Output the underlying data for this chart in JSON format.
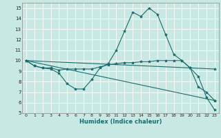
{
  "title": "",
  "xlabel": "Humidex (Indice chaleur)",
  "xlim": [
    -0.5,
    23.5
  ],
  "ylim": [
    5,
    15.5
  ],
  "yticks": [
    5,
    6,
    7,
    8,
    9,
    10,
    11,
    12,
    13,
    14,
    15
  ],
  "xticks": [
    0,
    1,
    2,
    3,
    4,
    5,
    6,
    7,
    8,
    9,
    10,
    11,
    12,
    13,
    14,
    15,
    16,
    17,
    18,
    19,
    20,
    21,
    22,
    23
  ],
  "bg_color": "#c8e8e4",
  "line_color": "#1a6b6b",
  "grid_color": "#ffffff",
  "lines": [
    {
      "x": [
        0,
        1,
        2,
        3,
        4,
        5,
        6,
        7,
        8,
        9,
        10,
        11,
        12,
        13,
        14,
        15,
        16,
        17,
        18,
        19,
        20,
        21,
        22,
        23
      ],
      "y": [
        10.0,
        9.5,
        9.3,
        9.2,
        8.8,
        7.8,
        7.3,
        7.3,
        8.2,
        9.3,
        9.7,
        11.0,
        12.8,
        14.6,
        14.2,
        15.0,
        14.4,
        12.5,
        10.6,
        10.0,
        9.3,
        7.5,
        7.0,
        6.2
      ]
    },
    {
      "x": [
        0,
        1,
        2,
        3,
        4,
        5,
        6,
        7,
        8,
        9,
        10,
        11,
        12,
        13,
        14,
        15,
        16,
        17,
        18,
        19,
        20,
        21,
        22,
        23
      ],
      "y": [
        10.0,
        9.5,
        9.3,
        9.3,
        9.1,
        9.2,
        9.2,
        9.2,
        9.2,
        9.4,
        9.6,
        9.7,
        9.8,
        9.8,
        9.9,
        9.9,
        10.0,
        10.0,
        10.0,
        10.0,
        9.3,
        8.5,
        6.5,
        5.3
      ]
    },
    {
      "x": [
        0,
        23
      ],
      "y": [
        10.0,
        9.2
      ]
    },
    {
      "x": [
        0,
        23
      ],
      "y": [
        10.0,
        6.2
      ]
    }
  ]
}
